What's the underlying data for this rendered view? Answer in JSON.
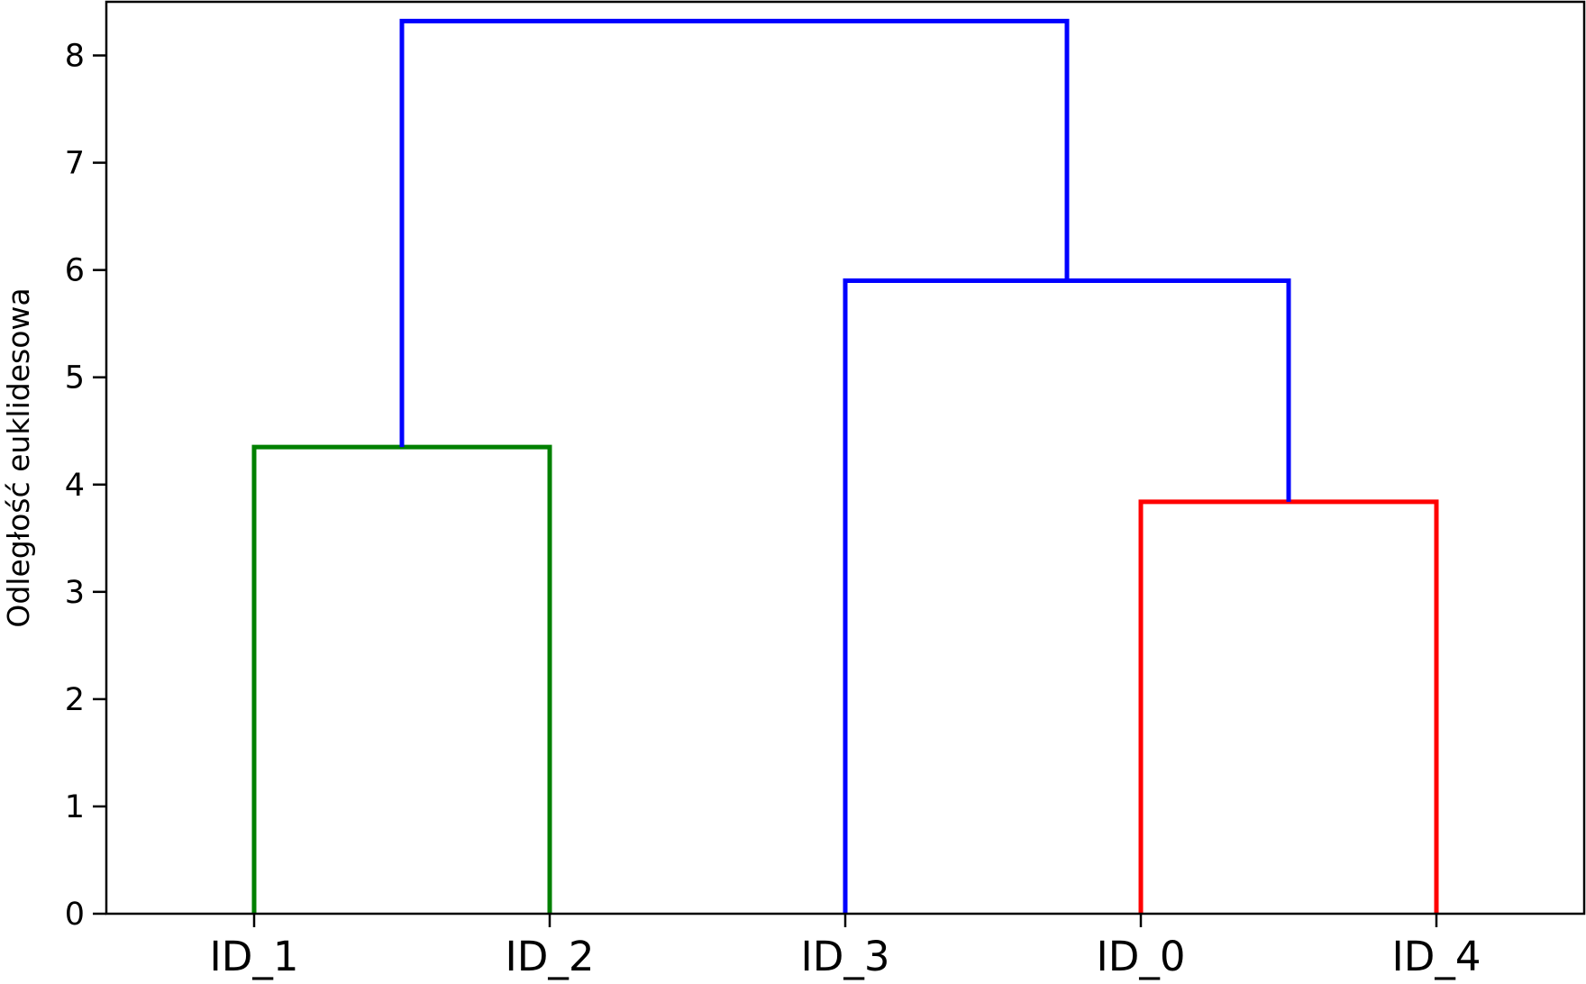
{
  "chart_data": {
    "type": "dendrogram",
    "title": "",
    "xlabel": "",
    "ylabel": "Odległość euklidesowa",
    "ylim": [
      0,
      8.5
    ],
    "yticks": [
      0,
      1,
      2,
      3,
      4,
      5,
      6,
      7,
      8
    ],
    "grid": false,
    "leaves": [
      "ID_1",
      "ID_2",
      "ID_3",
      "ID_0",
      "ID_4"
    ],
    "links": [
      {
        "left": "ID_1",
        "right": "ID_2",
        "height": 4.35,
        "color": "#008000"
      },
      {
        "left": "ID_0",
        "right": "ID_4",
        "height": 3.84,
        "color": "#ff0000"
      },
      {
        "left": "ID_3",
        "right": "(ID_0, ID_4)",
        "height": 5.9,
        "color": "#0000ff"
      },
      {
        "left": "(ID_1, ID_2)",
        "right": "(ID_3, (ID_0, ID_4))",
        "height": 8.32,
        "color": "#0000ff"
      }
    ]
  }
}
